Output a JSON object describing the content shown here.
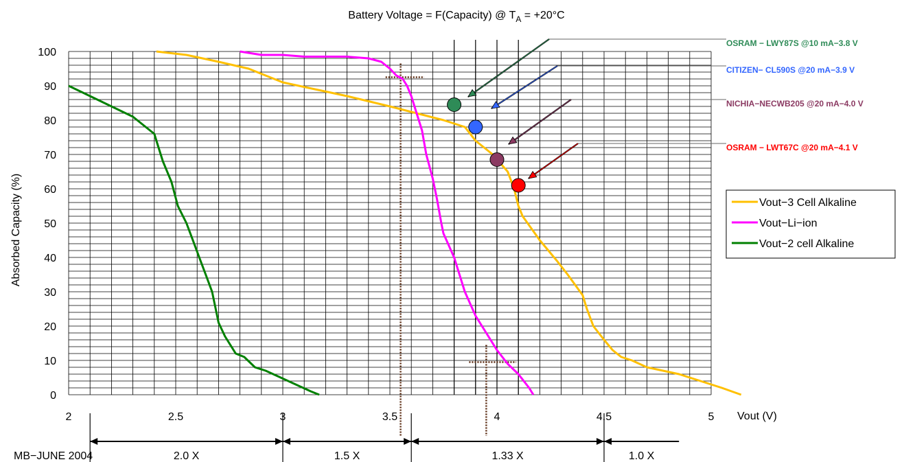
{
  "chart_data": {
    "type": "line",
    "title": "Battery Voltage = F(Capacity)  @ T",
    "title_sub": "A",
    "title_tail": " = +20°C",
    "xlabel": "Vout (V)",
    "ylabel": "Absorbed Capacity (%)",
    "xlim": [
      2,
      5
    ],
    "ylim": [
      0,
      100
    ],
    "x_ticks": [
      "2",
      "2.5",
      "3",
      "3.5",
      "4",
      "4.5",
      "5"
    ],
    "y_ticks": [
      "0",
      "10",
      "20",
      "30",
      "40",
      "50",
      "60",
      "70",
      "80",
      "90",
      "100"
    ],
    "grid": true,
    "legend_position": "right",
    "series": [
      {
        "name": "Vout−3 Cell Alkaline",
        "color": "#FFC000",
        "points": [
          [
            2.41,
            100
          ],
          [
            2.55,
            99
          ],
          [
            2.7,
            97
          ],
          [
            2.84,
            95
          ],
          [
            2.92,
            93
          ],
          [
            3.0,
            91
          ],
          [
            3.15,
            89
          ],
          [
            3.3,
            87
          ],
          [
            3.5,
            84
          ],
          [
            3.75,
            80
          ],
          [
            3.85,
            78
          ],
          [
            3.9,
            74
          ],
          [
            3.98,
            70
          ],
          [
            4.05,
            65
          ],
          [
            4.08,
            60
          ],
          [
            4.1,
            55
          ],
          [
            4.12,
            52
          ],
          [
            4.2,
            45
          ],
          [
            4.28,
            39
          ],
          [
            4.33,
            35
          ],
          [
            4.4,
            29
          ],
          [
            4.42,
            25
          ],
          [
            4.45,
            20
          ],
          [
            4.5,
            16
          ],
          [
            4.54,
            13
          ],
          [
            4.58,
            11
          ],
          [
            4.63,
            10
          ],
          [
            4.7,
            8
          ],
          [
            4.85,
            6
          ],
          [
            4.95,
            4
          ],
          [
            5.05,
            2
          ],
          [
            5.14,
            0
          ]
        ]
      },
      {
        "name": "Vout−Li−ion",
        "color": "#FF00FF",
        "points": [
          [
            2.8,
            100
          ],
          [
            2.9,
            99
          ],
          [
            3.0,
            99
          ],
          [
            3.1,
            98.5
          ],
          [
            3.3,
            98.5
          ],
          [
            3.4,
            98
          ],
          [
            3.46,
            97
          ],
          [
            3.5,
            95
          ],
          [
            3.53,
            93
          ],
          [
            3.56,
            92
          ],
          [
            3.58,
            90
          ],
          [
            3.6,
            87
          ],
          [
            3.62,
            83
          ],
          [
            3.65,
            77
          ],
          [
            3.67,
            70
          ],
          [
            3.7,
            63
          ],
          [
            3.72,
            57
          ],
          [
            3.74,
            50
          ],
          [
            3.75,
            47
          ],
          [
            3.8,
            40
          ],
          [
            3.85,
            30
          ],
          [
            3.9,
            23
          ],
          [
            3.95,
            18
          ],
          [
            4.0,
            13
          ],
          [
            4.05,
            9
          ],
          [
            4.1,
            6
          ],
          [
            4.15,
            2
          ],
          [
            4.17,
            0
          ]
        ]
      },
      {
        "name": "Vout−2 cell Alkaline",
        "color": "#008000",
        "points": [
          [
            2.0,
            90
          ],
          [
            2.1,
            87
          ],
          [
            2.2,
            84
          ],
          [
            2.3,
            81
          ],
          [
            2.36,
            78
          ],
          [
            2.4,
            76
          ],
          [
            2.42,
            72
          ],
          [
            2.44,
            68
          ],
          [
            2.48,
            62
          ],
          [
            2.51,
            55
          ],
          [
            2.55,
            50
          ],
          [
            2.58,
            45
          ],
          [
            2.61,
            40
          ],
          [
            2.64,
            35
          ],
          [
            2.67,
            30
          ],
          [
            2.7,
            21
          ],
          [
            2.73,
            17
          ],
          [
            2.78,
            12
          ],
          [
            2.82,
            11
          ],
          [
            2.87,
            8
          ],
          [
            2.92,
            7
          ],
          [
            2.99,
            5
          ],
          [
            3.06,
            3
          ],
          [
            3.13,
            1
          ],
          [
            3.17,
            0
          ]
        ]
      }
    ],
    "vertical_lines": [
      3.8,
      3.9,
      4.0,
      4.1
    ],
    "markers": [
      {
        "label": "OSRAM − LWY87S @10 mA−3.8 V",
        "x": 3.8,
        "y": 84.5,
        "color": "#2E8B57",
        "label_color": "#2E8B57"
      },
      {
        "label": "CITIZEN− CL590S @20 mA−3.9 V",
        "x": 3.9,
        "y": 78,
        "color": "#3366FF",
        "label_color": "#3366FF"
      },
      {
        "label": "NICHIA−NECWB205 @20 mA−4.0 V",
        "x": 4.0,
        "y": 68.5,
        "color": "#8B3A62",
        "label_color": "#8B3A62"
      },
      {
        "label": "OSRAM − LWT67C @20 mA−4.1 V",
        "x": 4.1,
        "y": 61,
        "color": "#FF0000",
        "label_color": "#FF0000"
      }
    ],
    "bottom_ranges": [
      {
        "from": 2.1,
        "to": 3.0,
        "label": "2.0 X"
      },
      {
        "from": 3.0,
        "to": 3.6,
        "label": "1.5 X"
      },
      {
        "from": 3.6,
        "to": 4.5,
        "label": "1.33 X"
      },
      {
        "from": 4.5,
        "to": 4.85,
        "label": "1.0 X"
      }
    ],
    "footer_note": "MB−JUNE 2004"
  }
}
